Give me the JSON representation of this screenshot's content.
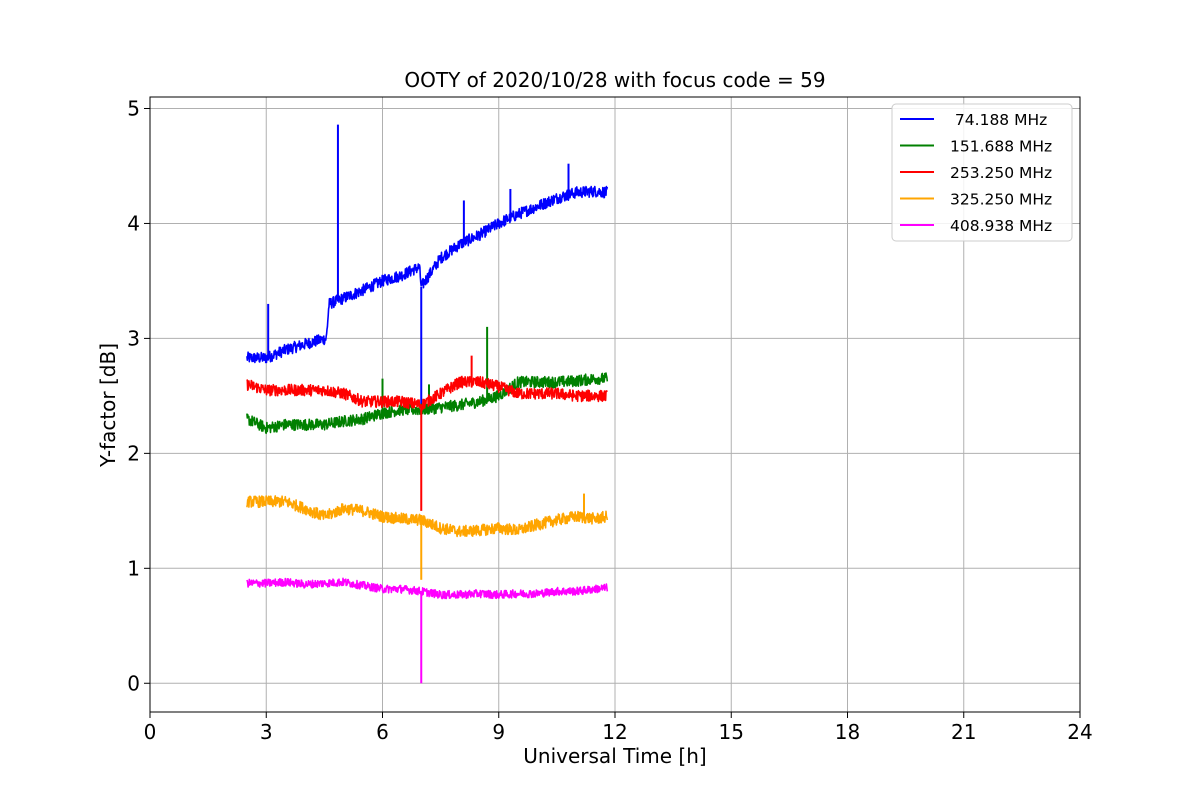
{
  "chart_data": {
    "type": "line",
    "title": "OOTY of 2020/10/28 with focus code = 59",
    "xlabel": "Universal Time [h]",
    "ylabel": "Y-factor [dB]",
    "xlim": [
      0,
      24
    ],
    "ylim": [
      -0.25,
      5.1
    ],
    "xticks": [
      "0",
      "3",
      "6",
      "9",
      "12",
      "15",
      "18",
      "21",
      "24"
    ],
    "yticks": [
      "0",
      "1",
      "2",
      "3",
      "4",
      "5"
    ],
    "grid": true,
    "legend_position": "top-right",
    "series": [
      {
        "name": " 74.188 MHz",
        "color": "#0000ff",
        "noise": 0.05,
        "points": [
          [
            2.5,
            2.83
          ],
          [
            3.0,
            2.83
          ],
          [
            3.5,
            2.9
          ],
          [
            4.0,
            2.95
          ],
          [
            4.55,
            3.0
          ],
          [
            4.62,
            3.3
          ],
          [
            5.0,
            3.35
          ],
          [
            5.5,
            3.42
          ],
          [
            6.0,
            3.5
          ],
          [
            6.5,
            3.55
          ],
          [
            6.95,
            3.62
          ],
          [
            7.0,
            3.45
          ],
          [
            7.5,
            3.7
          ],
          [
            8.0,
            3.82
          ],
          [
            8.5,
            3.9
          ],
          [
            9.0,
            4.0
          ],
          [
            9.5,
            4.08
          ],
          [
            10.0,
            4.15
          ],
          [
            10.5,
            4.22
          ],
          [
            11.0,
            4.27
          ],
          [
            11.5,
            4.28
          ],
          [
            11.8,
            4.27
          ]
        ],
        "spikes": [
          [
            3.05,
            3.3
          ],
          [
            4.85,
            4.86
          ],
          [
            7.0,
            2.42
          ],
          [
            8.1,
            4.2
          ],
          [
            10.8,
            4.52
          ],
          [
            9.3,
            4.3
          ]
        ]
      },
      {
        "name": "151.688 MHz",
        "color": "#008000",
        "noise": 0.05,
        "points": [
          [
            2.5,
            2.3
          ],
          [
            3.0,
            2.22
          ],
          [
            3.5,
            2.25
          ],
          [
            4.0,
            2.25
          ],
          [
            4.5,
            2.25
          ],
          [
            5.0,
            2.28
          ],
          [
            5.5,
            2.3
          ],
          [
            6.0,
            2.35
          ],
          [
            6.5,
            2.38
          ],
          [
            7.0,
            2.38
          ],
          [
            7.5,
            2.4
          ],
          [
            8.0,
            2.42
          ],
          [
            8.5,
            2.45
          ],
          [
            9.0,
            2.5
          ],
          [
            9.5,
            2.62
          ],
          [
            10.0,
            2.62
          ],
          [
            10.5,
            2.62
          ],
          [
            11.0,
            2.63
          ],
          [
            11.5,
            2.65
          ],
          [
            11.8,
            2.65
          ]
        ],
        "spikes": [
          [
            8.7,
            3.1
          ],
          [
            6.0,
            2.65
          ],
          [
            7.2,
            2.6
          ]
        ]
      },
      {
        "name": "253.250 MHz",
        "color": "#ff0000",
        "noise": 0.05,
        "points": [
          [
            2.5,
            2.6
          ],
          [
            3.0,
            2.55
          ],
          [
            3.5,
            2.55
          ],
          [
            4.0,
            2.55
          ],
          [
            4.5,
            2.55
          ],
          [
            5.0,
            2.52
          ],
          [
            5.5,
            2.45
          ],
          [
            6.0,
            2.45
          ],
          [
            6.5,
            2.45
          ],
          [
            7.0,
            2.42
          ],
          [
            7.5,
            2.52
          ],
          [
            8.0,
            2.62
          ],
          [
            8.5,
            2.62
          ],
          [
            9.0,
            2.58
          ],
          [
            9.5,
            2.52
          ],
          [
            10.0,
            2.52
          ],
          [
            10.5,
            2.52
          ],
          [
            11.0,
            2.5
          ],
          [
            11.5,
            2.5
          ],
          [
            11.8,
            2.5
          ]
        ],
        "spikes": [
          [
            7.0,
            1.5
          ],
          [
            8.3,
            2.85
          ]
        ]
      },
      {
        "name": "325.250 MHz",
        "color": "#ffa500",
        "noise": 0.05,
        "points": [
          [
            2.5,
            1.58
          ],
          [
            3.0,
            1.58
          ],
          [
            3.5,
            1.58
          ],
          [
            4.0,
            1.52
          ],
          [
            4.5,
            1.45
          ],
          [
            5.0,
            1.52
          ],
          [
            5.5,
            1.5
          ],
          [
            6.0,
            1.45
          ],
          [
            6.5,
            1.43
          ],
          [
            7.0,
            1.42
          ],
          [
            7.5,
            1.35
          ],
          [
            8.0,
            1.32
          ],
          [
            8.5,
            1.33
          ],
          [
            9.0,
            1.35
          ],
          [
            9.5,
            1.33
          ],
          [
            10.0,
            1.38
          ],
          [
            10.5,
            1.42
          ],
          [
            11.0,
            1.45
          ],
          [
            11.5,
            1.43
          ],
          [
            11.8,
            1.45
          ]
        ],
        "spikes": [
          [
            7.0,
            0.9
          ],
          [
            11.2,
            1.65
          ]
        ]
      },
      {
        "name": "408.938 MHz",
        "color": "#ff00ff",
        "noise": 0.035,
        "points": [
          [
            2.5,
            0.87
          ],
          [
            3.0,
            0.87
          ],
          [
            3.5,
            0.88
          ],
          [
            4.0,
            0.86
          ],
          [
            4.5,
            0.87
          ],
          [
            5.0,
            0.88
          ],
          [
            5.5,
            0.85
          ],
          [
            6.0,
            0.82
          ],
          [
            6.5,
            0.82
          ],
          [
            7.0,
            0.8
          ],
          [
            7.5,
            0.77
          ],
          [
            8.0,
            0.77
          ],
          [
            8.5,
            0.78
          ],
          [
            9.0,
            0.77
          ],
          [
            9.5,
            0.78
          ],
          [
            10.0,
            0.78
          ],
          [
            10.5,
            0.8
          ],
          [
            11.0,
            0.8
          ],
          [
            11.5,
            0.82
          ],
          [
            11.8,
            0.83
          ]
        ],
        "spikes": [
          [
            7.0,
            0.0
          ]
        ]
      }
    ]
  }
}
